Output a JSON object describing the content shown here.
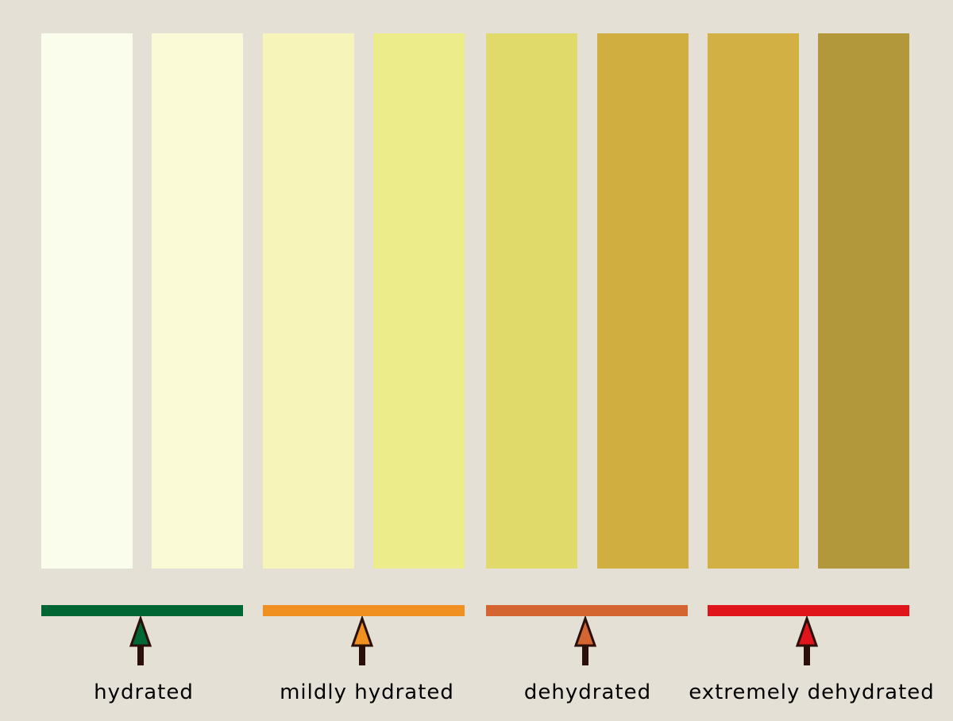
{
  "background_color": "#e5e0d5",
  "swatches": [
    {
      "color": "#fafcec"
    },
    {
      "color": "#fafbd6"
    },
    {
      "color": "#f6f4b8"
    },
    {
      "color": "#edec8a"
    },
    {
      "color": "#e0da6a"
    },
    {
      "color": "#d0af40"
    },
    {
      "color": "#d2b043"
    },
    {
      "color": "#b2973b"
    }
  ],
  "levels": [
    {
      "label": "hydrated",
      "color": "#006633",
      "icon": "arrow-up-icon"
    },
    {
      "label": "mildly hydrated",
      "color": "#f09020",
      "icon": "arrow-up-icon"
    },
    {
      "label": "dehydrated",
      "color": "#d56530",
      "icon": "arrow-up-icon"
    },
    {
      "label": "extremely dehydrated",
      "color": "#e0151c",
      "icon": "arrow-up-icon"
    }
  ],
  "arrow_outline_color": "#2a0f0a"
}
